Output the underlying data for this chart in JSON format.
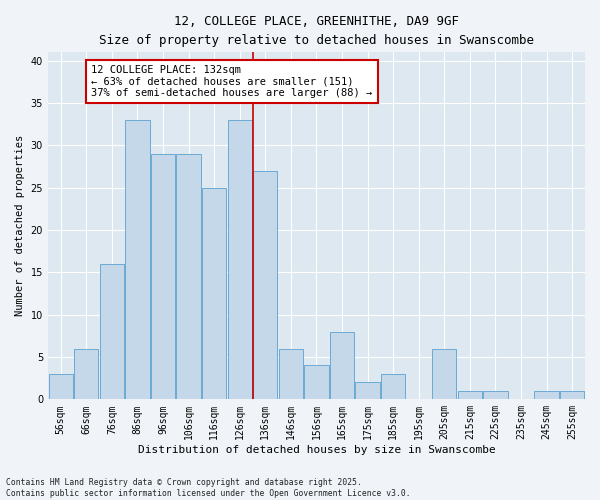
{
  "title1": "12, COLLEGE PLACE, GREENHITHE, DA9 9GF",
  "title2": "Size of property relative to detached houses in Swanscombe",
  "xlabel": "Distribution of detached houses by size in Swanscombe",
  "ylabel": "Number of detached properties",
  "categories": [
    "56sqm",
    "66sqm",
    "76sqm",
    "86sqm",
    "96sqm",
    "106sqm",
    "116sqm",
    "126sqm",
    "136sqm",
    "146sqm",
    "156sqm",
    "165sqm",
    "175sqm",
    "185sqm",
    "195sqm",
    "205sqm",
    "215sqm",
    "225sqm",
    "235sqm",
    "245sqm",
    "255sqm"
  ],
  "values": [
    3,
    6,
    16,
    33,
    29,
    29,
    25,
    33,
    27,
    6,
    4,
    8,
    2,
    3,
    0,
    6,
    1,
    1,
    0,
    1,
    1
  ],
  "bar_color": "#c5d8ea",
  "bar_edge_color": "#6aaad4",
  "vline_color": "#cc0000",
  "annotation_text": "12 COLLEGE PLACE: 132sqm\n← 63% of detached houses are smaller (151)\n37% of semi-detached houses are larger (88) →",
  "annotation_box_color": "#ffffff",
  "annotation_box_edge": "#cc0000",
  "figure_bg": "#f0f4f8",
  "axes_bg": "#dde8f0",
  "grid_color": "#ffffff",
  "ylim": [
    0,
    41
  ],
  "yticks": [
    0,
    5,
    10,
    15,
    20,
    25,
    30,
    35,
    40
  ],
  "footnote": "Contains HM Land Registry data © Crown copyright and database right 2025.\nContains public sector information licensed under the Open Government Licence v3.0."
}
